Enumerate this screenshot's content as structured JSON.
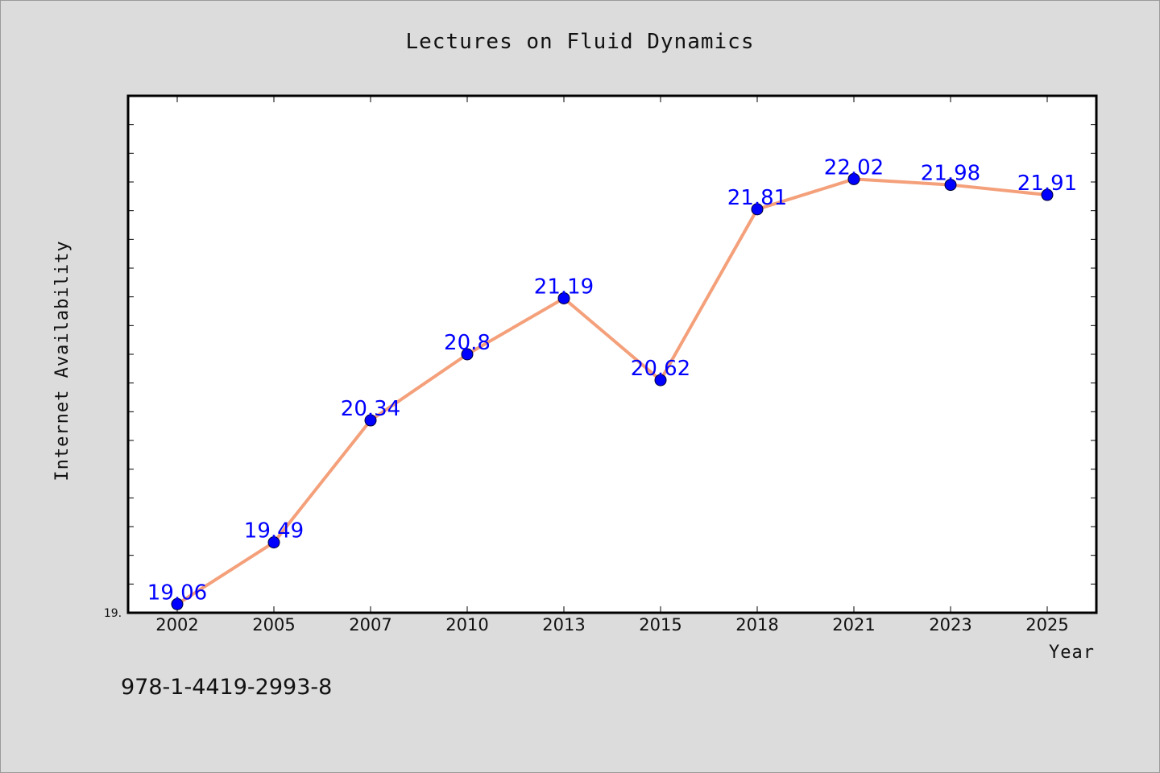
{
  "chart_data": {
    "type": "line",
    "title": "Lectures on Fluid Dynamics",
    "xlabel": "Year",
    "ylabel": "Internet Availability",
    "categories": [
      "2002",
      "2005",
      "2007",
      "2010",
      "2013",
      "2015",
      "2018",
      "2021",
      "2023",
      "2025"
    ],
    "series": [
      {
        "values": [
          19.06,
          19.49,
          20.34,
          20.8,
          21.19,
          20.62,
          21.81,
          22.02,
          21.98,
          21.91
        ],
        "line_color": "#f4a07a",
        "marker_color": "#0000ff"
      }
    ],
    "data_labels": [
      "19.06",
      "19.49",
      "20.34",
      "20.8",
      "21.19",
      "20.62",
      "21.81",
      "22.02",
      "21.98",
      "21.91"
    ],
    "y_min_label": "19.",
    "ylim": [
      19.0,
      22.6
    ],
    "grid": false,
    "legend": "none"
  },
  "footer_text": "978-1-4419-2993-8",
  "colors": {
    "background": "#dcdcdc",
    "plot_background": "#ffffff",
    "line": "#f4a07a",
    "marker": "#0000ff",
    "data_label": "#0000ff"
  }
}
